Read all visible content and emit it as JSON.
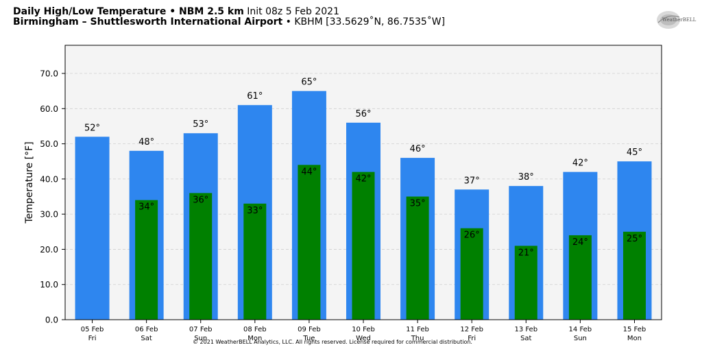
{
  "header": {
    "title_bold": "Daily High/Low Temperature • NBM 2.5 km",
    "title_init": "Init 08z 5 Feb 2021",
    "location_bold": "Birmingham – Shuttlesworth International Airport",
    "location_detail": "• KBHM [33.5629˚N, 86.7535˚W]"
  },
  "logo": {
    "text": "WeatherBELL"
  },
  "copyright": "© 2021 WeatherBELL Analytics, LLC. All rights reserved. License required for commercial distribution.",
  "colors": {
    "high": "#2e86ef",
    "low": "#008000",
    "plot_bg": "#f4f4f4"
  },
  "chart_data": {
    "type": "bar",
    "ylabel": "Temperature [°F]",
    "ylim": [
      0,
      78
    ],
    "yticks": [
      "0.0",
      "10.0",
      "20.0",
      "30.0",
      "40.0",
      "50.0",
      "60.0",
      "70.0"
    ],
    "ytick_values": [
      0,
      10,
      20,
      30,
      40,
      50,
      60,
      70
    ],
    "grid": true,
    "categories": [
      {
        "date": "05 Feb",
        "day": "Fri"
      },
      {
        "date": "06 Feb",
        "day": "Sat"
      },
      {
        "date": "07 Feb",
        "day": "Sun"
      },
      {
        "date": "08 Feb",
        "day": "Mon"
      },
      {
        "date": "09 Feb",
        "day": "Tue"
      },
      {
        "date": "10 Feb",
        "day": "Wed"
      },
      {
        "date": "11 Feb",
        "day": "Thu"
      },
      {
        "date": "12 Feb",
        "day": "Fri"
      },
      {
        "date": "13 Feb",
        "day": "Sat"
      },
      {
        "date": "14 Feb",
        "day": "Sun"
      },
      {
        "date": "15 Feb",
        "day": "Mon"
      }
    ],
    "series": [
      {
        "key": "high",
        "values": [
          52,
          48,
          53,
          61,
          65,
          56,
          46,
          37,
          38,
          42,
          45
        ],
        "labels": [
          "52°",
          "48°",
          "53°",
          "61°",
          "65°",
          "56°",
          "46°",
          "37°",
          "38°",
          "42°",
          "45°"
        ]
      },
      {
        "key": "low",
        "values": [
          null,
          34,
          36,
          33,
          44,
          42,
          35,
          26,
          21,
          24,
          25
        ],
        "labels": [
          null,
          "34°",
          "36°",
          "33°",
          "44°",
          "42°",
          "35°",
          "26°",
          "21°",
          "24°",
          "25°"
        ]
      }
    ]
  }
}
